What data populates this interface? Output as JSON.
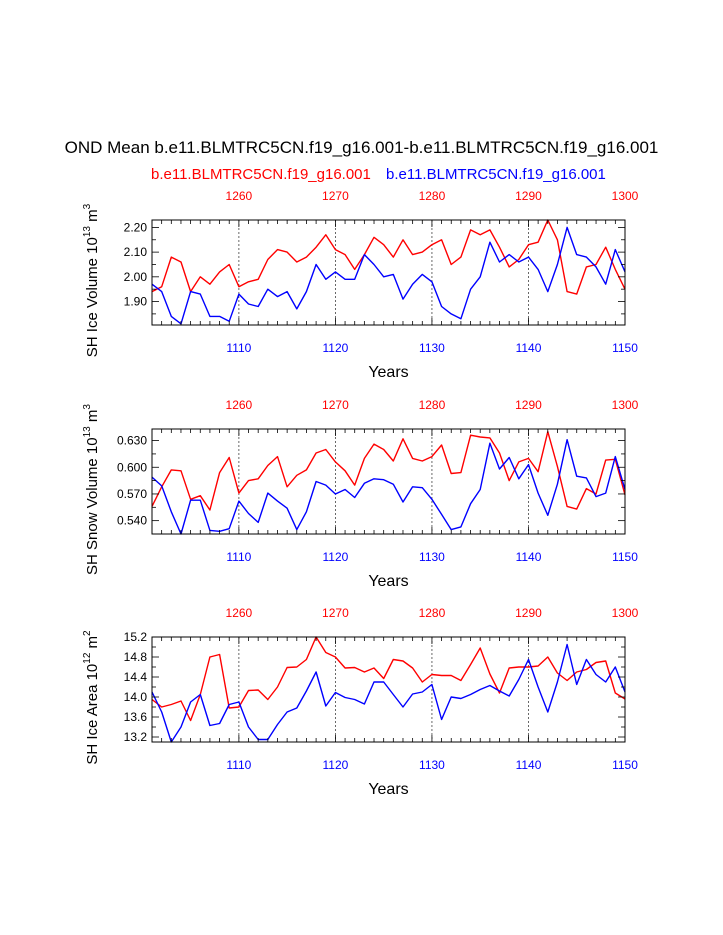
{
  "header": {
    "title": "OND Mean b.e11.BLMTRC5CN.f19_g16.001-b.e11.BLMTRC5CN.f19_g16.001",
    "case_red": "b.e11.BLMTRC5CN.f19_g16.001",
    "case_blue": "b.e11.BLMTRC5CN.f19_g16.001"
  },
  "colors": {
    "red": "#ff0000",
    "blue": "#0000ff",
    "axis": "#000000",
    "grid": "#444444"
  },
  "chart_data": [
    {
      "type": "line",
      "ylabel": "SH Ice Volume 10^13 m^3",
      "ylabel_base": "SH Ice Volume 10",
      "ylabel_exp": "13",
      "ylabel_unit": " m",
      "ylabel_unit_exp": "3",
      "xlabel": "Years",
      "xlim": [
        1101,
        1150
      ],
      "top_xlim": [
        1251,
        1300
      ],
      "ylim": [
        1.805,
        2.23
      ],
      "yticks": [
        "1.90",
        "2.00",
        "2.10",
        "2.20"
      ],
      "ytick_values": [
        1.9,
        2.0,
        2.1,
        2.2
      ],
      "bottom_ticks": [
        "1110",
        "1120",
        "1130",
        "1140",
        "1150"
      ],
      "top_ticks": [
        "1260",
        "1270",
        "1280",
        "1290",
        "1300"
      ],
      "x": [
        1101,
        1102,
        1103,
        1104,
        1105,
        1106,
        1107,
        1108,
        1109,
        1110,
        1111,
        1112,
        1113,
        1114,
        1115,
        1116,
        1117,
        1118,
        1119,
        1120,
        1121,
        1122,
        1123,
        1124,
        1125,
        1126,
        1127,
        1128,
        1129,
        1130,
        1131,
        1132,
        1133,
        1134,
        1135,
        1136,
        1137,
        1138,
        1139,
        1140,
        1141,
        1142,
        1143,
        1144,
        1145,
        1146,
        1147,
        1148,
        1149,
        1150
      ],
      "series": [
        {
          "color": "red",
          "values": [
            1.94,
            1.96,
            2.08,
            2.06,
            1.94,
            2.0,
            1.97,
            2.02,
            2.05,
            1.96,
            1.98,
            1.99,
            2.07,
            2.11,
            2.1,
            2.06,
            2.08,
            2.12,
            2.17,
            2.11,
            2.09,
            2.03,
            2.09,
            2.16,
            2.13,
            2.08,
            2.15,
            2.09,
            2.1,
            2.13,
            2.15,
            2.05,
            2.08,
            2.19,
            2.17,
            2.19,
            2.12,
            2.04,
            2.07,
            2.13,
            2.14,
            2.23,
            2.15,
            1.94,
            1.93,
            2.04,
            2.05,
            2.12,
            2.03,
            1.95
          ]
        },
        {
          "color": "blue",
          "values": [
            1.97,
            1.94,
            1.84,
            1.81,
            1.94,
            1.93,
            1.84,
            1.84,
            1.82,
            1.93,
            1.89,
            1.88,
            1.95,
            1.92,
            1.94,
            1.87,
            1.94,
            2.05,
            1.99,
            2.02,
            1.99,
            1.99,
            2.09,
            2.05,
            2.0,
            2.01,
            1.91,
            1.97,
            2.01,
            1.98,
            1.88,
            1.85,
            1.83,
            1.95,
            2.0,
            2.14,
            2.06,
            2.09,
            2.06,
            2.08,
            2.03,
            1.94,
            2.05,
            2.2,
            2.09,
            2.08,
            2.04,
            1.97,
            2.11,
            2.02
          ]
        }
      ]
    },
    {
      "type": "line",
      "ylabel": "SH Snow Volume 10^13 m^3",
      "ylabel_base": "SH Snow Volume 10",
      "ylabel_exp": "13",
      "ylabel_unit": " m",
      "ylabel_unit_exp": "3",
      "xlabel": "Years",
      "xlim": [
        1101,
        1150
      ],
      "top_xlim": [
        1251,
        1300
      ],
      "ylim": [
        0.525,
        0.643
      ],
      "yticks": [
        "0.540",
        "0.570",
        "0.600",
        "0.630"
      ],
      "ytick_values": [
        0.54,
        0.57,
        0.6,
        0.63
      ],
      "bottom_ticks": [
        "1110",
        "1120",
        "1130",
        "1140",
        "1150"
      ],
      "top_ticks": [
        "1260",
        "1270",
        "1280",
        "1290",
        "1300"
      ],
      "x": [
        1101,
        1102,
        1103,
        1104,
        1105,
        1106,
        1107,
        1108,
        1109,
        1110,
        1111,
        1112,
        1113,
        1114,
        1115,
        1116,
        1117,
        1118,
        1119,
        1120,
        1121,
        1122,
        1123,
        1124,
        1125,
        1126,
        1127,
        1128,
        1129,
        1130,
        1131,
        1132,
        1133,
        1134,
        1135,
        1136,
        1137,
        1138,
        1139,
        1140,
        1141,
        1142,
        1143,
        1144,
        1145,
        1146,
        1147,
        1148,
        1149,
        1150
      ],
      "series": [
        {
          "color": "red",
          "values": [
            0.556,
            0.578,
            0.597,
            0.596,
            0.564,
            0.568,
            0.552,
            0.594,
            0.611,
            0.571,
            0.585,
            0.587,
            0.602,
            0.612,
            0.578,
            0.591,
            0.597,
            0.616,
            0.62,
            0.606,
            0.596,
            0.58,
            0.61,
            0.626,
            0.62,
            0.607,
            0.632,
            0.61,
            0.607,
            0.612,
            0.625,
            0.593,
            0.594,
            0.636,
            0.634,
            0.633,
            0.616,
            0.585,
            0.606,
            0.61,
            0.595,
            0.64,
            0.601,
            0.556,
            0.553,
            0.576,
            0.57,
            0.608,
            0.609,
            0.569
          ]
        },
        {
          "color": "blue",
          "values": [
            0.589,
            0.579,
            0.55,
            0.525,
            0.563,
            0.563,
            0.529,
            0.528,
            0.531,
            0.562,
            0.548,
            0.538,
            0.571,
            0.562,
            0.554,
            0.53,
            0.55,
            0.584,
            0.58,
            0.57,
            0.575,
            0.566,
            0.582,
            0.587,
            0.586,
            0.581,
            0.561,
            0.578,
            0.577,
            0.564,
            0.547,
            0.53,
            0.533,
            0.559,
            0.575,
            0.627,
            0.598,
            0.611,
            0.587,
            0.603,
            0.571,
            0.546,
            0.581,
            0.631,
            0.59,
            0.588,
            0.567,
            0.571,
            0.612,
            0.575
          ]
        }
      ]
    },
    {
      "type": "line",
      "ylabel": "SH Ice Area 10^12 m^2",
      "ylabel_base": "SH Ice Area 10",
      "ylabel_exp": "12",
      "ylabel_unit": " m",
      "ylabel_unit_exp": "2",
      "xlabel": "Years",
      "xlim": [
        1101,
        1150
      ],
      "top_xlim": [
        1251,
        1300
      ],
      "ylim": [
        13.1,
        15.2
      ],
      "yticks": [
        "13.2",
        "13.6",
        "14.0",
        "14.4",
        "14.8",
        "15.2"
      ],
      "ytick_values": [
        13.2,
        13.6,
        14.0,
        14.4,
        14.8,
        15.2
      ],
      "bottom_ticks": [
        "1110",
        "1120",
        "1130",
        "1140",
        "1150"
      ],
      "top_ticks": [
        "1260",
        "1270",
        "1280",
        "1290",
        "1300"
      ],
      "x": [
        1101,
        1102,
        1103,
        1104,
        1105,
        1106,
        1107,
        1108,
        1109,
        1110,
        1111,
        1112,
        1113,
        1114,
        1115,
        1116,
        1117,
        1118,
        1119,
        1120,
        1121,
        1122,
        1123,
        1124,
        1125,
        1126,
        1127,
        1128,
        1129,
        1130,
        1131,
        1132,
        1133,
        1134,
        1135,
        1136,
        1137,
        1138,
        1139,
        1140,
        1141,
        1142,
        1143,
        1144,
        1145,
        1146,
        1147,
        1148,
        1149,
        1150
      ],
      "series": [
        {
          "color": "red",
          "values": [
            13.95,
            13.8,
            13.85,
            13.92,
            13.53,
            14.05,
            14.8,
            14.85,
            13.78,
            13.8,
            14.13,
            14.14,
            13.95,
            14.2,
            14.59,
            14.6,
            14.75,
            15.2,
            14.89,
            14.8,
            14.58,
            14.59,
            14.5,
            14.58,
            14.37,
            14.75,
            14.72,
            14.58,
            14.3,
            14.45,
            14.43,
            14.43,
            14.33,
            14.65,
            14.98,
            14.46,
            14.08,
            14.58,
            14.6,
            14.6,
            14.62,
            14.8,
            14.48,
            14.33,
            14.5,
            14.55,
            14.69,
            14.72,
            14.08,
            13.96
          ]
        },
        {
          "color": "blue",
          "values": [
            14.1,
            13.7,
            13.1,
            13.4,
            13.9,
            14.05,
            13.43,
            13.47,
            13.85,
            13.9,
            13.4,
            13.15,
            13.15,
            13.45,
            13.7,
            13.78,
            14.12,
            14.5,
            13.82,
            14.09,
            13.99,
            13.95,
            13.86,
            14.3,
            14.3,
            14.05,
            13.8,
            14.06,
            14.1,
            14.25,
            13.55,
            14.0,
            13.97,
            14.05,
            14.15,
            14.23,
            14.12,
            14.02,
            14.35,
            14.75,
            14.2,
            13.7,
            14.3,
            15.05,
            14.25,
            14.75,
            14.45,
            14.3,
            14.6,
            14.1
          ]
        }
      ]
    }
  ]
}
